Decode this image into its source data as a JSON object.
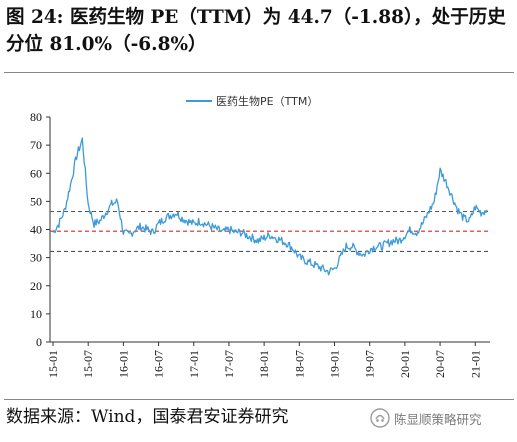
{
  "header": {
    "title": "图 24:  医药生物 PE（TTM）为 44.7（-1.88），处于历史分位 81.0%（-6.8%）"
  },
  "footer": {
    "source": "数据来源：Wind，国泰君安证券研究",
    "watermark_text": "陈显顺策略研究",
    "watermark_icon": "wechat-like-logo"
  },
  "colors": {
    "series": "#3d9ad6",
    "mean": "#d62728",
    "band": "#555555",
    "axis": "#333333"
  },
  "chart_data": {
    "type": "line",
    "title": "",
    "xlabel": "",
    "ylabel": "",
    "ylim": [
      0,
      80
    ],
    "yticks": [
      "0",
      "10",
      "20",
      "30",
      "40",
      "50",
      "60",
      "70",
      "80"
    ],
    "xticks": [
      "15-01",
      "15-07",
      "16-01",
      "16-07",
      "17-01",
      "17-07",
      "18-01",
      "18-07",
      "19-01",
      "19-07",
      "20-01",
      "20-07",
      "21-01"
    ],
    "grid": false,
    "legend": "top-center",
    "series": [
      {
        "name": "医药生物PE（TTM）",
        "x": [
          "15-01",
          "15-02",
          "15-03",
          "15-04",
          "15-05",
          "15-06",
          "15-07",
          "15-08",
          "15-09",
          "15-10",
          "15-11",
          "15-12",
          "16-01",
          "16-02",
          "16-03",
          "16-04",
          "16-05",
          "16-06",
          "16-07",
          "16-08",
          "16-09",
          "16-10",
          "16-11",
          "16-12",
          "17-01",
          "17-02",
          "17-03",
          "17-04",
          "17-05",
          "17-06",
          "17-07",
          "17-08",
          "17-09",
          "17-10",
          "17-11",
          "17-12",
          "18-01",
          "18-02",
          "18-03",
          "18-04",
          "18-05",
          "18-06",
          "18-07",
          "18-08",
          "18-09",
          "18-10",
          "18-11",
          "18-12",
          "19-01",
          "19-02",
          "19-03",
          "19-04",
          "19-05",
          "19-06",
          "19-07",
          "19-08",
          "19-09",
          "19-10",
          "19-11",
          "19-12",
          "20-01",
          "20-02",
          "20-03",
          "20-04",
          "20-05",
          "20-06",
          "20-07",
          "20-08",
          "20-09",
          "20-10",
          "20-11",
          "20-12",
          "21-01",
          "21-02",
          "21-03"
        ],
        "values": [
          39,
          42,
          47,
          56,
          66,
          72,
          49,
          42,
          43,
          46,
          49,
          50,
          39,
          38,
          40,
          41,
          40,
          39,
          42,
          44,
          45,
          46,
          44,
          43,
          42,
          43,
          42,
          41,
          40,
          39,
          40,
          39,
          39,
          38,
          37,
          36,
          37,
          38,
          37,
          36,
          35,
          33,
          30,
          29,
          28,
          27,
          26,
          25,
          26,
          30,
          34,
          34,
          32,
          31,
          33,
          34,
          34,
          35,
          36,
          36,
          38,
          40,
          39,
          42,
          46,
          50,
          61,
          57,
          52,
          47,
          44,
          43,
          48,
          46,
          47
        ]
      }
    ],
    "reference_lines": [
      {
        "name": "",
        "value": 46.4,
        "style": "dashed"
      },
      {
        "name": "",
        "value": 39.4,
        "style": "dashed"
      },
      {
        "name": "",
        "value": 32.2,
        "style": "dashed"
      }
    ]
  }
}
